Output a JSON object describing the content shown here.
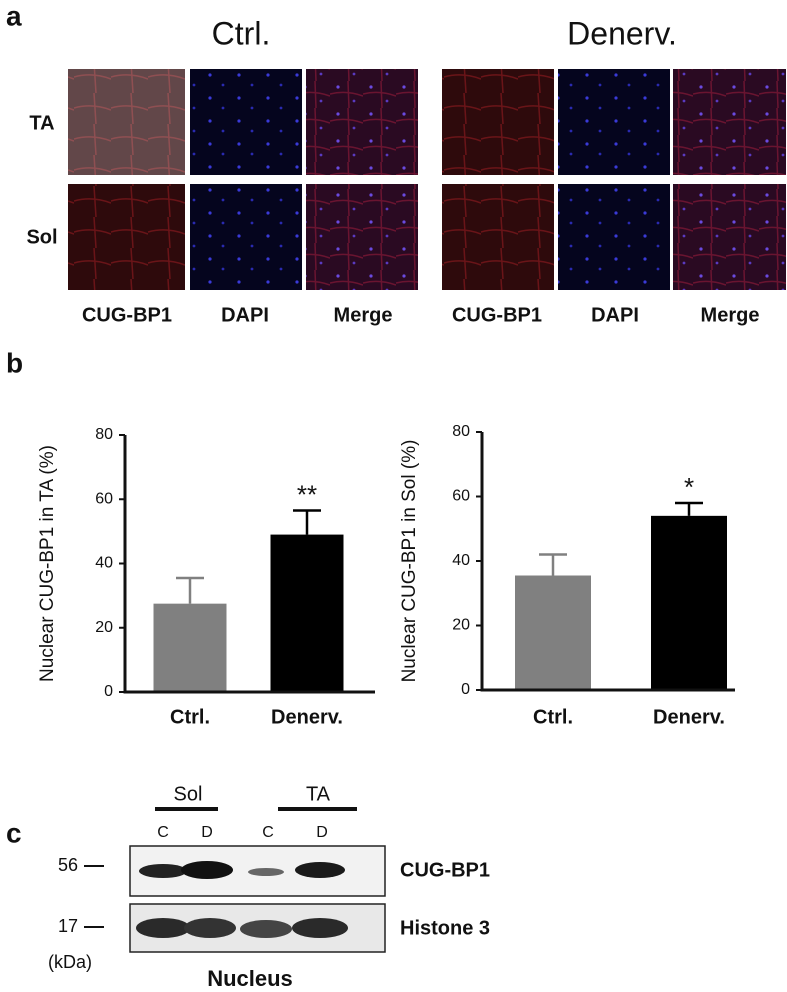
{
  "panel_a": {
    "label": "a",
    "groups": [
      {
        "title": "Ctrl.",
        "channels": [
          "CUG-BP1",
          "DAPI",
          "Merge"
        ]
      },
      {
        "title": "Denerv.",
        "channels": [
          "CUG-BP1",
          "DAPI",
          "Merge"
        ]
      }
    ],
    "rows": [
      "TA",
      "Sol"
    ]
  },
  "panel_b": {
    "label": "b"
  },
  "chart_data": [
    {
      "type": "bar",
      "ylabel": "Nuclear  CUG-BP1 in TA (%)",
      "categories": [
        "Ctrl.",
        "Denerv."
      ],
      "values": [
        27.5,
        49
      ],
      "errors": [
        8,
        7.5
      ],
      "colors": [
        "#808080",
        "#000000"
      ],
      "significance": [
        null,
        "**"
      ],
      "ylim": [
        0,
        80
      ],
      "yticks": [
        0,
        20,
        40,
        60,
        80
      ]
    },
    {
      "type": "bar",
      "ylabel": "Nuclear  CUG-BP1 in Sol (%)",
      "categories": [
        "Ctrl.",
        "Denerv."
      ],
      "values": [
        35.5,
        54
      ],
      "errors": [
        6.5,
        4
      ],
      "colors": [
        "#808080",
        "#000000"
      ],
      "significance": [
        null,
        "*"
      ],
      "ylim": [
        0,
        80
      ],
      "yticks": [
        0,
        20,
        40,
        60,
        80
      ]
    }
  ],
  "panel_c": {
    "label": "c",
    "groups": [
      {
        "name": "Sol",
        "lanes": [
          "C",
          "D"
        ]
      },
      {
        "name": "TA",
        "lanes": [
          "C",
          "D"
        ]
      }
    ],
    "markers": [
      "56",
      "17"
    ],
    "unit": "(kDa)",
    "bands": [
      "CUG-BP1",
      "Histone 3"
    ],
    "caption": "Nucleus"
  }
}
